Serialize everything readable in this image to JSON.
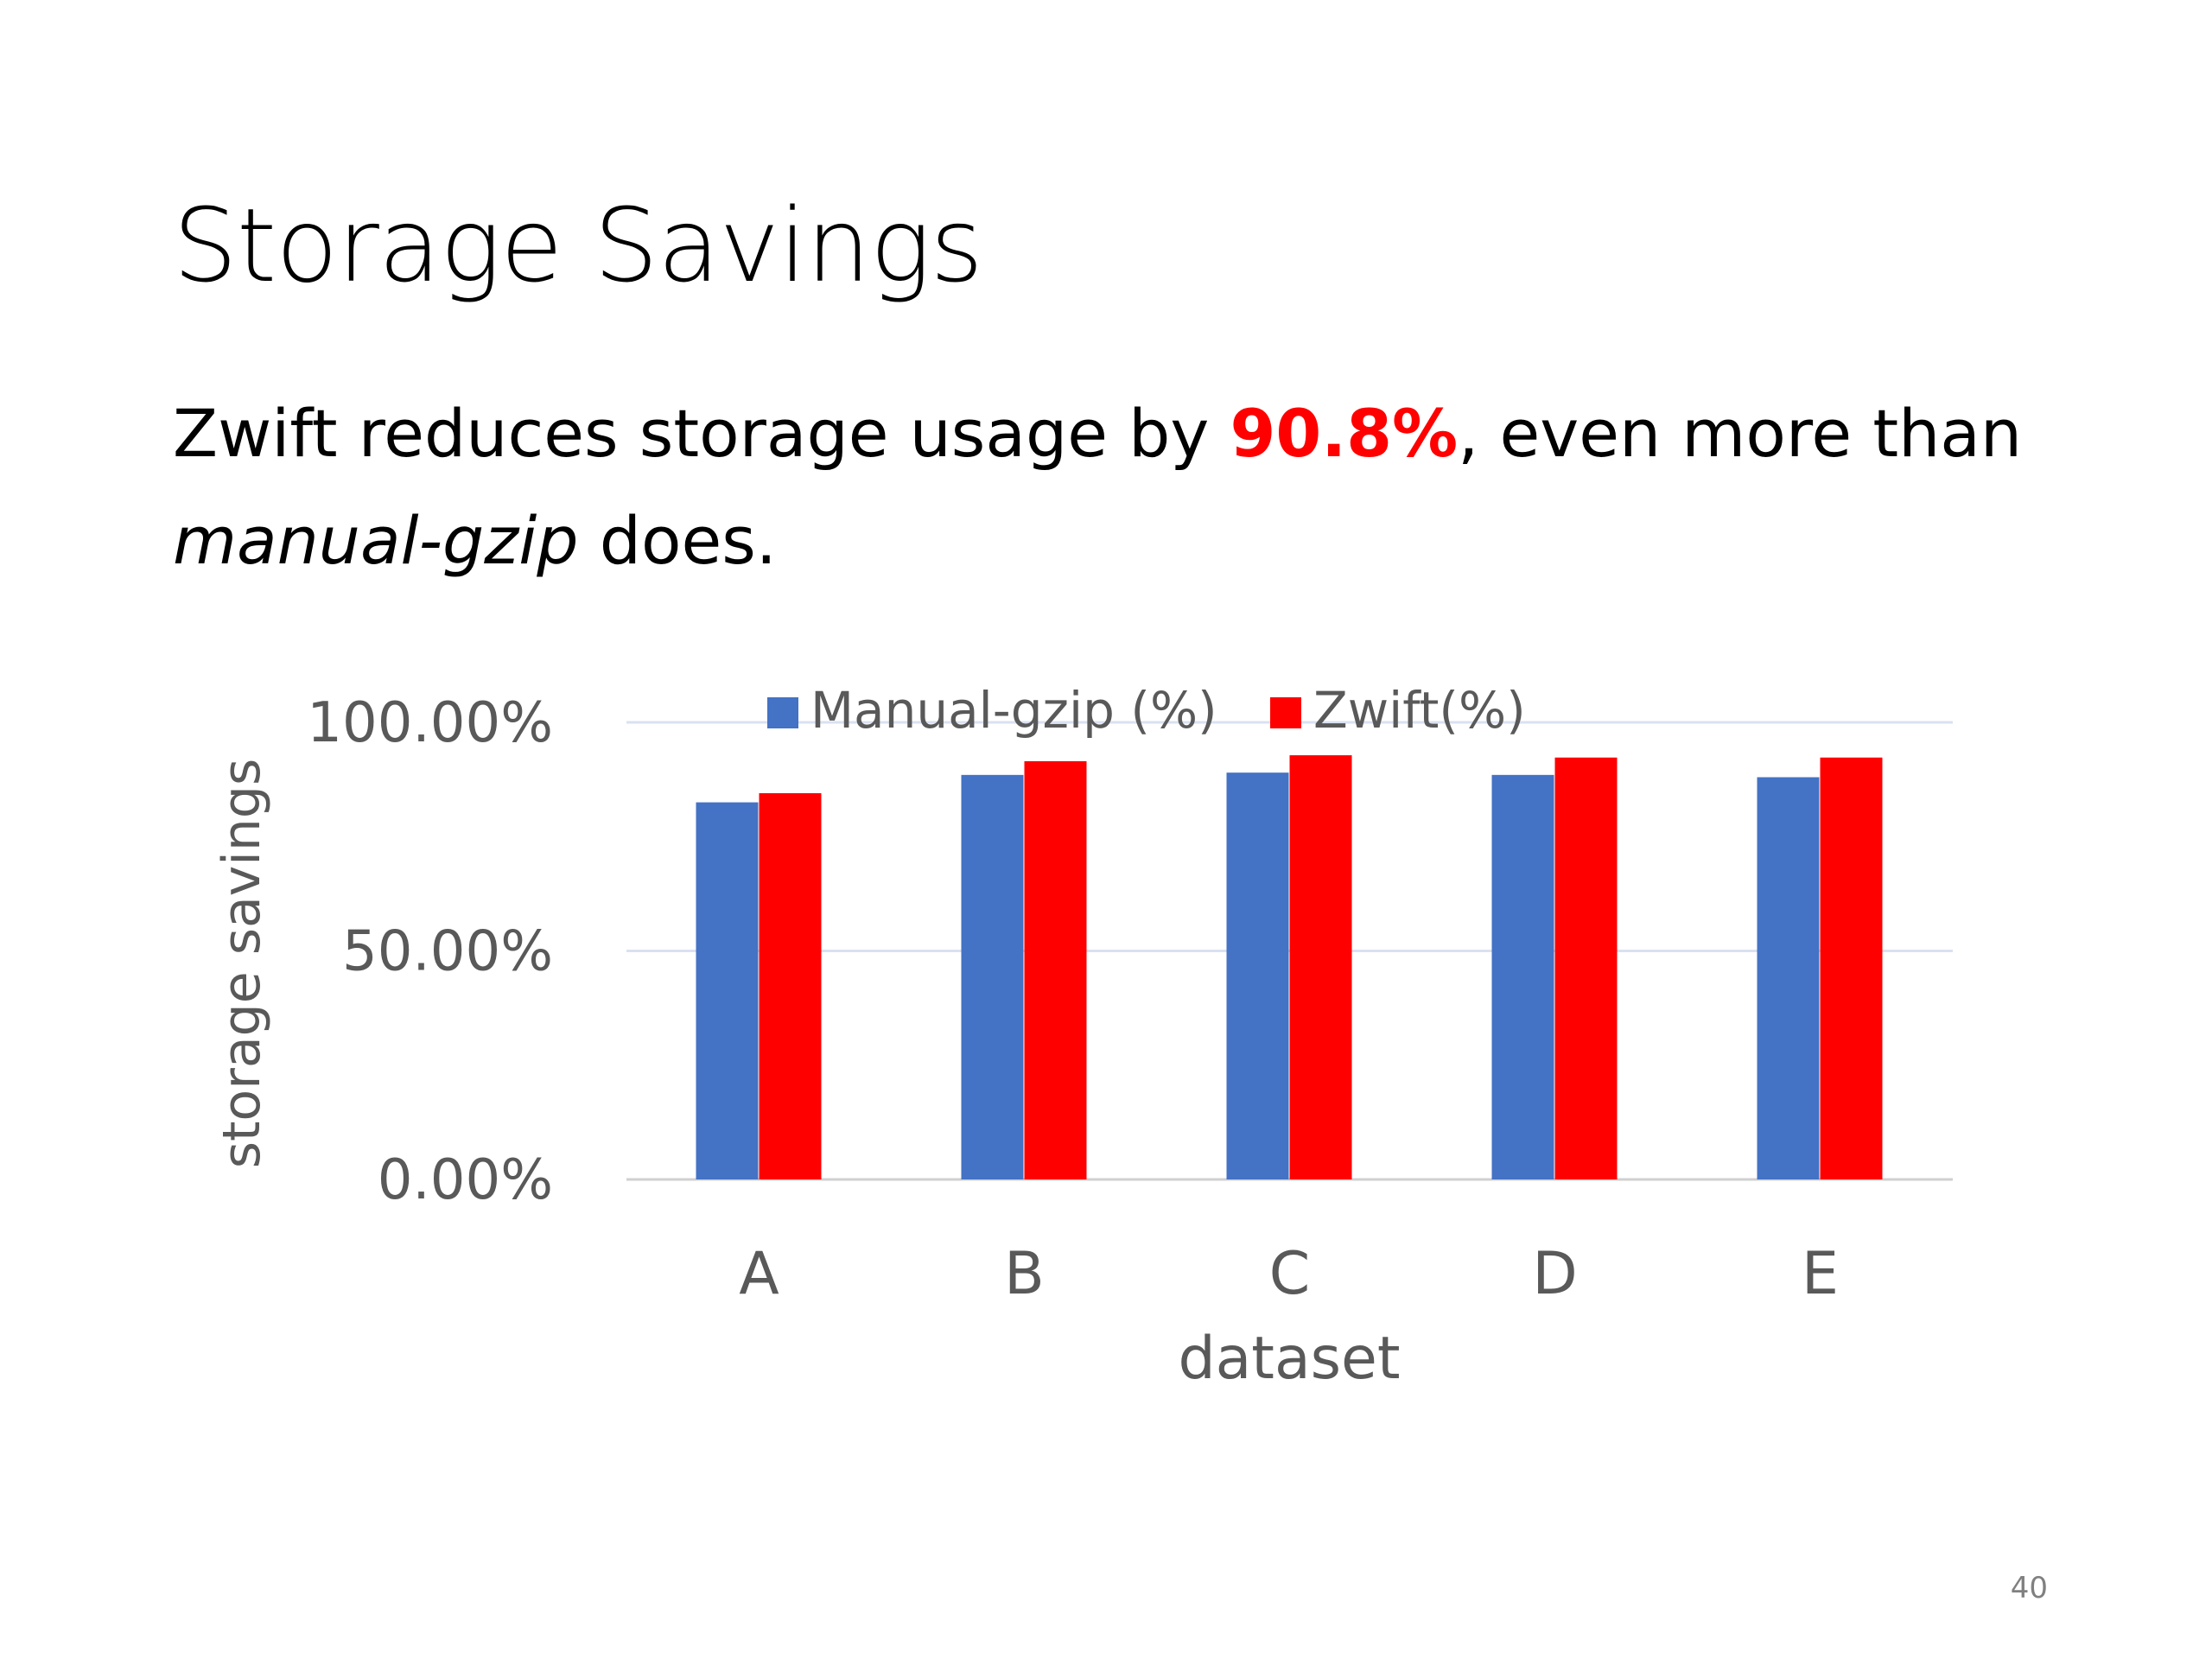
{
  "slide": {
    "title": "Storage Savings",
    "body": {
      "pre": "Zwift reduces storage usage by ",
      "highlight": "90.8%",
      "mid": ", even more than",
      "italic": "manual-gzip",
      "post": " does."
    },
    "page_number": "40"
  },
  "colors": {
    "highlight": "#ff0000",
    "manual": "#4472c4",
    "zwift": "#ff0000"
  },
  "chart_data": {
    "type": "bar",
    "categories": [
      "A",
      "B",
      "C",
      "D",
      "E"
    ],
    "series": [
      {
        "name": "Manual-gzip (%)",
        "color": "#4472c4",
        "values": [
          82.5,
          88.5,
          89,
          88.5,
          88
        ]
      },
      {
        "name": "Zwift(%)",
        "color": "#ff0000",
        "values": [
          84.5,
          91.5,
          92.8,
          92.3,
          92.3
        ]
      }
    ],
    "ylim": [
      0,
      100
    ],
    "yticks": [
      "0.00%",
      "50.00%",
      "100.00%"
    ],
    "ytick_values": [
      0,
      50,
      100
    ],
    "xlabel": "dataset",
    "ylabel": "storage savings",
    "legend_position": "top",
    "grid": true
  }
}
